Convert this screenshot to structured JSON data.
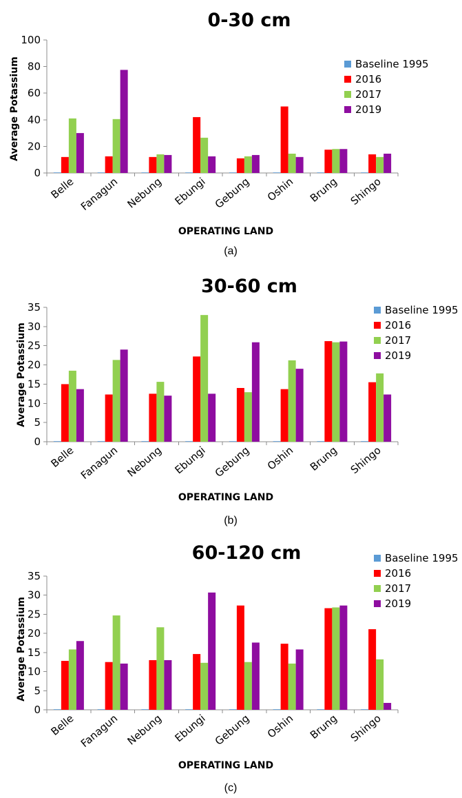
{
  "colors": {
    "Baseline 1995": "#5b9bd5",
    "2016": "#ff0000",
    "2017": "#92d050",
    "2019": "#8e0da0"
  },
  "chart_data": [
    {
      "type": "bar",
      "title": "0-30 cm",
      "xlabel": "OPERATING LAND",
      "ylabel": "Average Potassium",
      "caption": "(a)",
      "ylim": [
        0,
        100
      ],
      "yticks": [
        0,
        20,
        40,
        60,
        80,
        100
      ],
      "grid": false,
      "legend_position": "right",
      "categories": [
        "Belle",
        "Fanagun",
        "Nebung",
        "Ebungi",
        "Gebung",
        "Oshin",
        "Brung",
        "Shingo"
      ],
      "series": [
        {
          "name": "Baseline 1995",
          "values": [
            0.3,
            0.3,
            0.3,
            0.3,
            0.3,
            0.3,
            0.3,
            0.3
          ]
        },
        {
          "name": "2016",
          "values": [
            12,
            12.5,
            12,
            42,
            11,
            50,
            17.5,
            14
          ]
        },
        {
          "name": "2017",
          "values": [
            41,
            40.5,
            14,
            26.5,
            12.5,
            14.5,
            18,
            12
          ]
        },
        {
          "name": "2019",
          "values": [
            30,
            77.5,
            13.5,
            12.5,
            13.5,
            12,
            18,
            14.5
          ]
        }
      ]
    },
    {
      "type": "bar",
      "title": "30-60 cm",
      "xlabel": "OPERATING LAND",
      "ylabel": "Average Potassium",
      "caption": "(b)",
      "ylim": [
        0,
        35
      ],
      "yticks": [
        0,
        5,
        10,
        15,
        20,
        25,
        30,
        35
      ],
      "grid": false,
      "legend_position": "right",
      "categories": [
        "Belle",
        "Fanagun",
        "Nebung",
        "Ebungi",
        "Gebung",
        "Oshin",
        "Brung",
        "Shingo"
      ],
      "series": [
        {
          "name": "Baseline 1995",
          "values": [
            0.15,
            0.15,
            0.15,
            0.15,
            0.15,
            0.15,
            0.15,
            0.15
          ]
        },
        {
          "name": "2016",
          "values": [
            15,
            12.3,
            12.5,
            22.2,
            14,
            13.7,
            26.2,
            15.5
          ]
        },
        {
          "name": "2017",
          "values": [
            18.5,
            21.3,
            15.6,
            33,
            12.9,
            21.2,
            25.9,
            17.8
          ]
        },
        {
          "name": "2019",
          "values": [
            13.7,
            24,
            12,
            12.5,
            25.9,
            19,
            26.1,
            12.3
          ]
        }
      ]
    },
    {
      "type": "bar",
      "title": "60-120 cm",
      "xlabel": "OPERATING LAND",
      "ylabel": "Average Potassium",
      "caption": "(c)",
      "ylim": [
        0,
        35
      ],
      "yticks": [
        0,
        5,
        10,
        15,
        20,
        25,
        30,
        35
      ],
      "grid": false,
      "legend_position": "top-right",
      "categories": [
        "Belle",
        "Fanagun",
        "Nebung",
        "Ebungi",
        "Gebung",
        "Oshin",
        "Brung",
        "Shingo"
      ],
      "series": [
        {
          "name": "Baseline 1995",
          "values": [
            0.15,
            0.15,
            0.15,
            0.15,
            0.15,
            0.15,
            0.15,
            0.15
          ]
        },
        {
          "name": "2016",
          "values": [
            12.8,
            12.5,
            13,
            14.6,
            27.3,
            17.3,
            26.6,
            21.1
          ]
        },
        {
          "name": "2017",
          "values": [
            15.8,
            24.7,
            21.6,
            12.3,
            12.5,
            12.1,
            26.8,
            13.2
          ]
        },
        {
          "name": "2019",
          "values": [
            18,
            12.1,
            13,
            30.7,
            17.6,
            15.8,
            27.3,
            1.8
          ]
        }
      ]
    }
  ]
}
